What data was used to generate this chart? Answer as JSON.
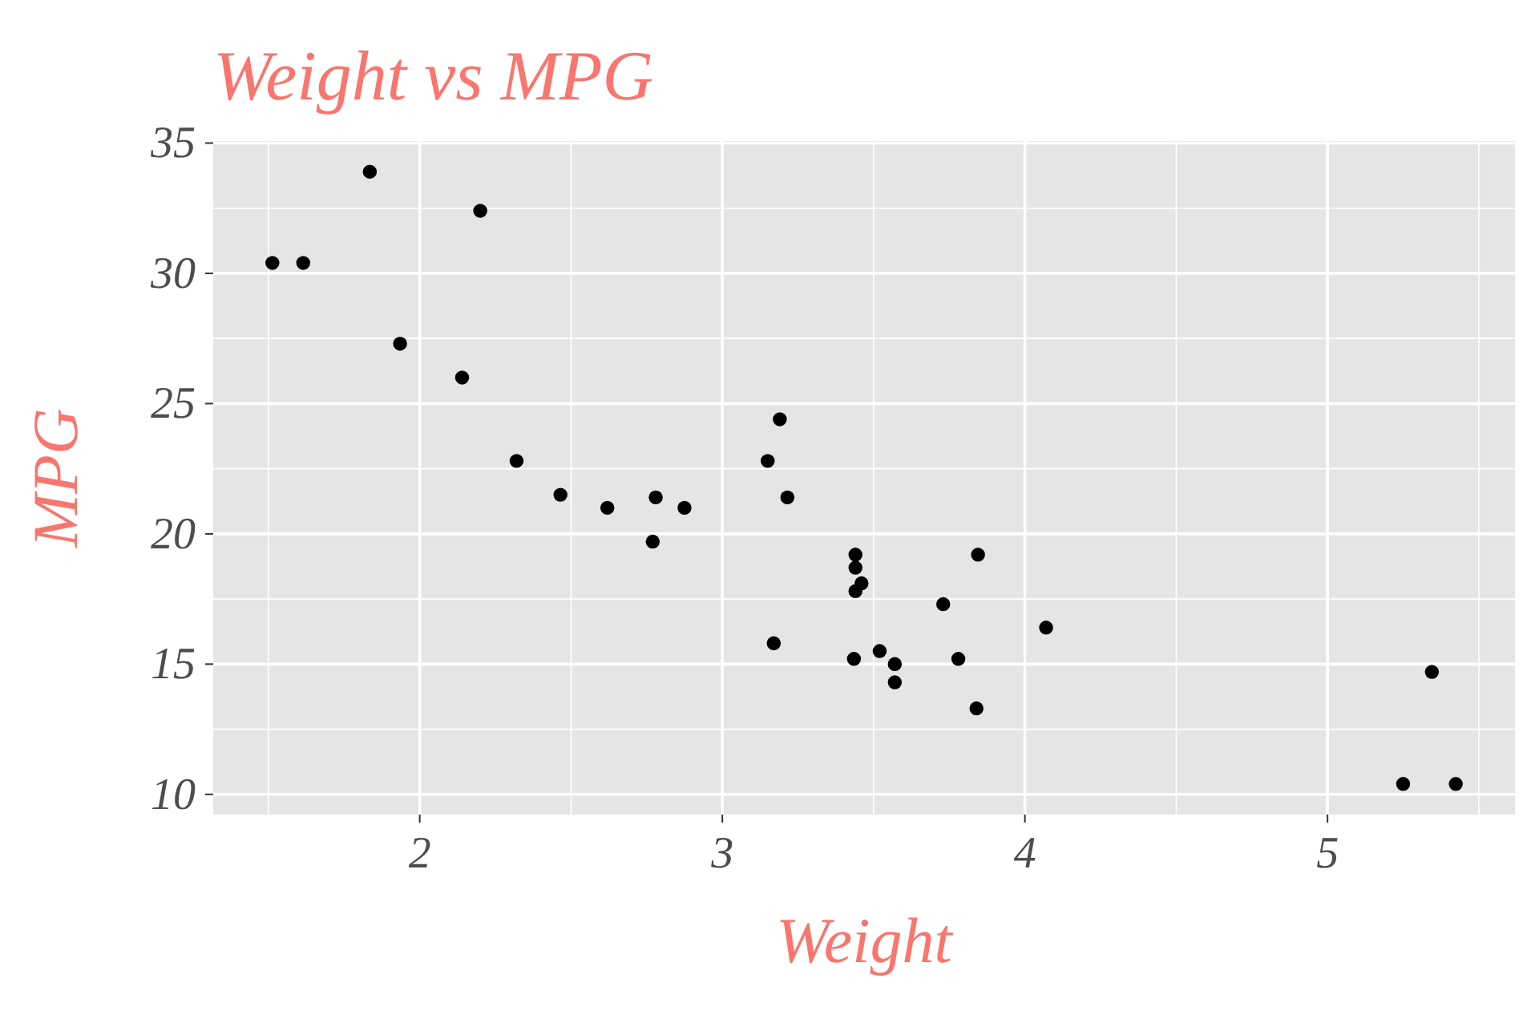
{
  "chart_data": {
    "type": "scatter",
    "title": "Weight vs MPG",
    "xlabel": "Weight",
    "ylabel": "MPG",
    "x": [
      2.62,
      2.875,
      2.32,
      3.215,
      3.44,
      3.46,
      3.57,
      3.19,
      3.15,
      3.44,
      3.44,
      4.07,
      3.73,
      3.78,
      5.25,
      5.424,
      5.345,
      2.2,
      1.615,
      1.835,
      2.465,
      3.52,
      3.435,
      3.84,
      3.845,
      1.935,
      2.14,
      1.513,
      3.17,
      2.77,
      3.57,
      2.78
    ],
    "series": [
      {
        "color": "#000000",
        "values": [
          21.0,
          21.0,
          22.8,
          21.4,
          18.7,
          18.1,
          14.3,
          24.4,
          22.8,
          19.2,
          17.8,
          16.4,
          17.3,
          15.2,
          10.4,
          10.4,
          14.7,
          32.4,
          30.4,
          33.9,
          21.5,
          15.5,
          15.2,
          13.3,
          19.2,
          27.3,
          26.0,
          30.4,
          15.8,
          19.7,
          15.0,
          21.4
        ]
      }
    ],
    "xlim": [
      1.3175,
      5.6195
    ],
    "ylim": [
      9.225,
      35.075
    ],
    "xticks": [
      2,
      3,
      4,
      5
    ],
    "yticks": [
      10,
      15,
      20,
      25,
      30,
      35
    ],
    "grid": true,
    "marker": "circle"
  }
}
